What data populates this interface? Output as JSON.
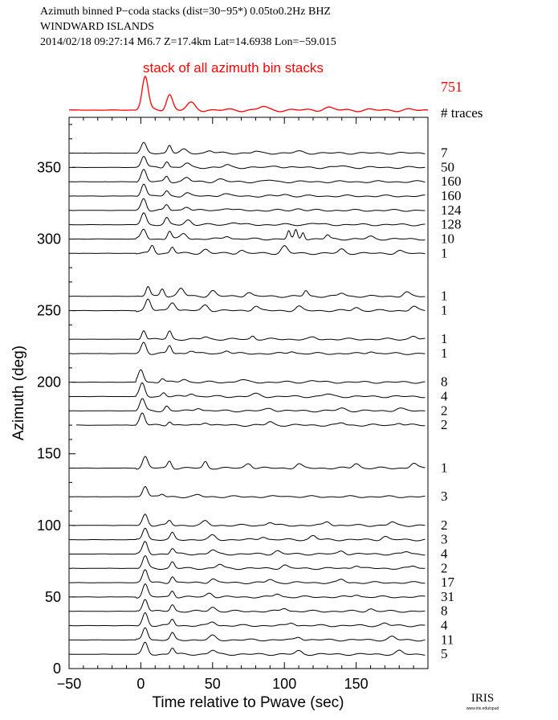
{
  "header": {
    "line1": "Azimuth binned P−coda stacks (dist=30−95*)  0.05to0.2Hz  BHZ",
    "line2": "WINDWARD ISLANDS",
    "line3": "2014/02/18  09:27:14  M6.7  Z=17.4km Lat=14.6938 Lon=−59.015"
  },
  "logo": {
    "text": "IRIS",
    "subtext": "www.iris.edu/spud"
  },
  "colors": {
    "stack": "#ff0000",
    "trace": "#000000",
    "axis": "#000000"
  },
  "chart_data": {
    "type": "line",
    "title": "stack of all azimuth bin stacks",
    "xlabel": "Time relative to Pwave (sec)",
    "ylabel": "Azimuth (deg)",
    "xlim": [
      -50,
      200
    ],
    "ylim": [
      0,
      385
    ],
    "x_ticks": [
      -50,
      0,
      50,
      100,
      150
    ],
    "y_ticks": [
      0,
      50,
      100,
      150,
      200,
      250,
      300,
      350
    ],
    "count_header": "# traces",
    "stack_trace_count": "751",
    "stack_trace_start_time": -50,
    "trace_start_time": -48,
    "trace_end_time": 198,
    "grid": false,
    "series": [
      {
        "azimuth": 360,
        "count": "7",
        "start": -48,
        "peaks": [
          [
            2,
            12,
            2.5
          ],
          [
            20,
            10,
            2
          ],
          [
            30,
            4,
            3
          ],
          [
            48,
            3,
            3
          ],
          [
            80,
            2,
            3
          ],
          [
            110,
            2,
            4
          ]
        ]
      },
      {
        "azimuth": 350,
        "count": "50",
        "start": -48,
        "peaks": [
          [
            2,
            14,
            2.5
          ],
          [
            18,
            8,
            2
          ],
          [
            32,
            5,
            3
          ],
          [
            60,
            3,
            3
          ],
          [
            95,
            2,
            4
          ],
          [
            140,
            2,
            4
          ]
        ]
      },
      {
        "azimuth": 340,
        "count": "160",
        "start": -48,
        "peaks": [
          [
            2,
            15,
            2.5
          ],
          [
            18,
            7,
            2
          ],
          [
            32,
            5,
            3
          ],
          [
            55,
            3,
            4
          ],
          [
            90,
            2,
            4
          ]
        ]
      },
      {
        "azimuth": 330,
        "count": "160",
        "start": -48,
        "peaks": [
          [
            2,
            16,
            2.5
          ],
          [
            18,
            6,
            2
          ],
          [
            32,
            4,
            3
          ],
          [
            58,
            3,
            4
          ],
          [
            100,
            2,
            4
          ]
        ]
      },
      {
        "azimuth": 320,
        "count": "124",
        "start": -48,
        "peaks": [
          [
            2,
            15,
            2.5
          ],
          [
            18,
            7,
            2
          ],
          [
            32,
            5,
            3
          ],
          [
            60,
            3,
            4
          ],
          [
            110,
            2,
            4
          ]
        ]
      },
      {
        "azimuth": 310,
        "count": "128",
        "start": -48,
        "peaks": [
          [
            2,
            15,
            2.5
          ],
          [
            18,
            8,
            2
          ],
          [
            33,
            6,
            3
          ],
          [
            65,
            3,
            4
          ],
          [
            120,
            2,
            4
          ]
        ]
      },
      {
        "azimuth": 300,
        "count": "10",
        "start": -48,
        "peaks": [
          [
            2,
            12,
            2.5
          ],
          [
            20,
            10,
            2
          ],
          [
            30,
            7,
            3
          ],
          [
            60,
            4,
            3
          ],
          [
            103,
            10,
            1.5
          ],
          [
            108,
            11,
            1.5
          ],
          [
            113,
            9,
            1.5
          ],
          [
            130,
            5,
            2
          ],
          [
            160,
            3,
            3
          ]
        ]
      },
      {
        "azimuth": 290,
        "count": "1",
        "start": -48,
        "peaks": [
          [
            8,
            10,
            2
          ],
          [
            22,
            8,
            2
          ],
          [
            45,
            5,
            3
          ],
          [
            70,
            4,
            3
          ],
          [
            100,
            9,
            3
          ],
          [
            140,
            5,
            3
          ],
          [
            180,
            3,
            3
          ]
        ]
      },
      {
        "azimuth": 260,
        "count": "1",
        "start": -48,
        "peaks": [
          [
            5,
            12,
            2
          ],
          [
            15,
            10,
            2
          ],
          [
            28,
            10,
            3
          ],
          [
            50,
            7,
            3
          ],
          [
            75,
            5,
            3
          ],
          [
            115,
            7,
            2
          ],
          [
            140,
            4,
            3
          ],
          [
            185,
            5,
            3
          ]
        ]
      },
      {
        "azimuth": 250,
        "count": "1",
        "start": -48,
        "peaks": [
          [
            5,
            14,
            2.5
          ],
          [
            22,
            11,
            3
          ],
          [
            45,
            7,
            3
          ],
          [
            80,
            6,
            3
          ],
          [
            110,
            5,
            3
          ],
          [
            150,
            4,
            3
          ],
          [
            190,
            5,
            3
          ]
        ]
      },
      {
        "azimuth": 230,
        "count": "1",
        "start": -48,
        "peaks": [
          [
            2,
            12,
            2
          ],
          [
            20,
            10,
            2
          ],
          [
            45,
            3,
            3
          ],
          [
            78,
            4,
            2
          ],
          [
            120,
            2,
            3
          ],
          [
            190,
            4,
            3
          ]
        ]
      },
      {
        "azimuth": 220,
        "count": "1",
        "start": -48,
        "peaks": [
          [
            2,
            14,
            2.5
          ],
          [
            20,
            10,
            2
          ],
          [
            35,
            4,
            3
          ],
          [
            60,
            4,
            3
          ],
          [
            105,
            3,
            3
          ],
          [
            160,
            3,
            3
          ]
        ]
      },
      {
        "azimuth": 200,
        "count": "8",
        "start": -48,
        "peaks": [
          [
            0,
            16,
            2.5
          ],
          [
            15,
            5,
            2
          ],
          [
            30,
            4,
            3
          ],
          [
            70,
            3,
            4
          ],
          [
            120,
            2,
            4
          ]
        ]
      },
      {
        "azimuth": 190,
        "count": "4",
        "start": -48,
        "peaks": [
          [
            1,
            16,
            2.5
          ],
          [
            16,
            5,
            2
          ],
          [
            35,
            4,
            3
          ],
          [
            80,
            3,
            4
          ],
          [
            130,
            3,
            4
          ]
        ]
      },
      {
        "azimuth": 180,
        "count": "2",
        "start": -48,
        "peaks": [
          [
            1,
            15,
            2.5
          ],
          [
            18,
            6,
            2
          ],
          [
            40,
            4,
            3
          ],
          [
            90,
            3,
            4
          ],
          [
            140,
            3,
            4
          ],
          [
            180,
            3,
            4
          ]
        ]
      },
      {
        "azimuth": 170,
        "count": "2",
        "start": -45,
        "peaks": [
          [
            -10,
            3,
            2
          ],
          [
            1,
            15,
            2.5
          ],
          [
            20,
            5,
            2
          ],
          [
            45,
            4,
            3
          ],
          [
            90,
            4,
            3
          ],
          [
            140,
            3,
            3
          ],
          [
            180,
            3,
            3
          ]
        ]
      },
      {
        "azimuth": 140,
        "count": "1",
        "start": -48,
        "peaks": [
          [
            3,
            14,
            2.5
          ],
          [
            20,
            9,
            2
          ],
          [
            45,
            8,
            2
          ],
          [
            75,
            6,
            3
          ],
          [
            110,
            5,
            3
          ],
          [
            150,
            6,
            3
          ],
          [
            190,
            6,
            3
          ]
        ]
      },
      {
        "azimuth": 120,
        "count": "3",
        "start": -48,
        "peaks": [
          [
            3,
            14,
            2.5
          ],
          [
            15,
            3,
            2
          ],
          [
            40,
            2,
            3
          ],
          [
            100,
            1,
            4
          ]
        ]
      },
      {
        "azimuth": 100,
        "count": "2",
        "start": -48,
        "peaks": [
          [
            3,
            14,
            2.5
          ],
          [
            20,
            6,
            2
          ],
          [
            45,
            5,
            3
          ],
          [
            90,
            4,
            3
          ],
          [
            130,
            5,
            3
          ],
          [
            175,
            4,
            3
          ]
        ]
      },
      {
        "azimuth": 90,
        "count": "3",
        "start": -48,
        "peaks": [
          [
            3,
            15,
            2.5
          ],
          [
            22,
            8,
            2
          ],
          [
            50,
            5,
            3
          ],
          [
            85,
            4,
            3
          ],
          [
            120,
            5,
            3
          ],
          [
            170,
            4,
            3
          ]
        ]
      },
      {
        "azimuth": 80,
        "count": "4",
        "start": -48,
        "peaks": [
          [
            3,
            15,
            2.5
          ],
          [
            22,
            7,
            2
          ],
          [
            50,
            5,
            3
          ],
          [
            95,
            4,
            3
          ],
          [
            140,
            4,
            3
          ],
          [
            185,
            3,
            3
          ]
        ]
      },
      {
        "azimuth": 70,
        "count": "2",
        "start": -48,
        "peaks": [
          [
            3,
            15,
            2.5
          ],
          [
            22,
            8,
            2
          ],
          [
            55,
            5,
            3
          ],
          [
            100,
            4,
            3
          ],
          [
            150,
            4,
            3
          ],
          [
            190,
            3,
            3
          ]
        ]
      },
      {
        "azimuth": 60,
        "count": "17",
        "start": -48,
        "peaks": [
          [
            3,
            16,
            2.5
          ],
          [
            22,
            8,
            2
          ],
          [
            50,
            5,
            3
          ],
          [
            90,
            4,
            3
          ],
          [
            140,
            4,
            3
          ]
        ]
      },
      {
        "azimuth": 50,
        "count": "31",
        "start": -48,
        "peaks": [
          [
            3,
            16,
            2.5
          ],
          [
            22,
            8,
            2
          ],
          [
            48,
            5,
            3
          ],
          [
            95,
            4,
            3
          ],
          [
            150,
            3,
            3
          ]
        ]
      },
      {
        "azimuth": 40,
        "count": "8",
        "start": -48,
        "peaks": [
          [
            3,
            16,
            2.5
          ],
          [
            22,
            8,
            2
          ],
          [
            50,
            5,
            3
          ],
          [
            100,
            4,
            3
          ],
          [
            160,
            3,
            3
          ]
        ]
      },
      {
        "azimuth": 30,
        "count": "4",
        "start": -48,
        "peaks": [
          [
            3,
            16,
            2.5
          ],
          [
            22,
            8,
            2
          ],
          [
            50,
            5,
            3
          ],
          [
            105,
            4,
            3
          ],
          [
            170,
            3,
            3
          ]
        ]
      },
      {
        "azimuth": 20,
        "count": "11",
        "start": -48,
        "peaks": [
          [
            3,
            16,
            2.5
          ],
          [
            22,
            8,
            2
          ],
          [
            50,
            5,
            3
          ],
          [
            110,
            4,
            3
          ],
          [
            175,
            4,
            3
          ]
        ]
      },
      {
        "azimuth": 10,
        "count": "5",
        "start": -48,
        "peaks": [
          [
            3,
            14,
            2.5
          ],
          [
            22,
            8,
            2
          ],
          [
            50,
            5,
            3
          ],
          [
            110,
            4,
            3
          ],
          [
            180,
            4,
            3
          ]
        ]
      }
    ],
    "stack_peaks": [
      [
        3,
        30,
        3
      ],
      [
        20,
        14,
        3
      ],
      [
        35,
        6,
        4
      ],
      [
        85,
        3,
        4
      ],
      [
        130,
        2,
        5
      ]
    ]
  }
}
